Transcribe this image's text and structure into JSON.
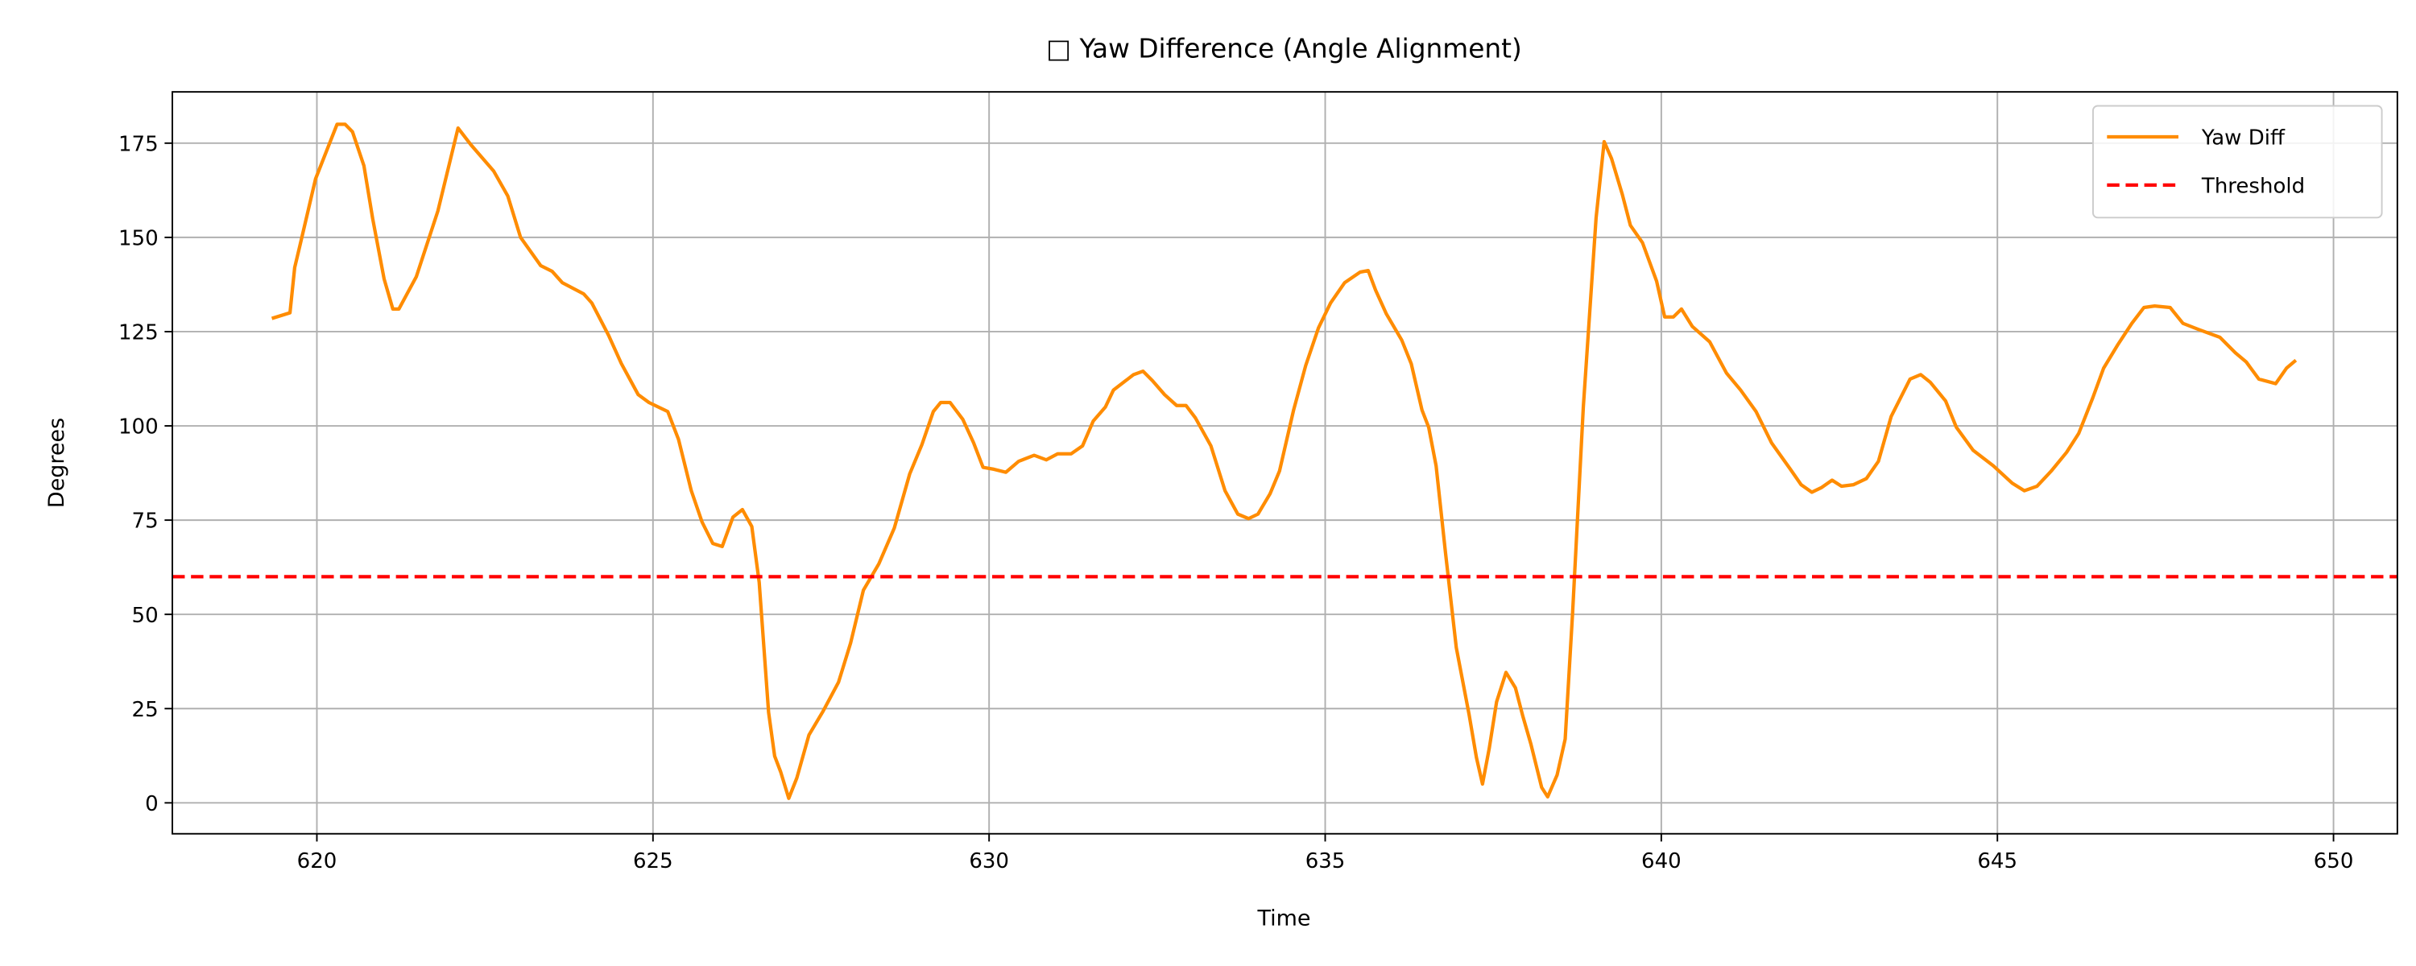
{
  "chart_data": {
    "type": "line",
    "title": "□ Yaw Difference (Angle Alignment)",
    "xlabel": "Time",
    "ylabel": "Degrees",
    "x": [
      619.33,
      619.6,
      619.67,
      619.75,
      619.98,
      620.3,
      620.42,
      620.53,
      620.7,
      620.83,
      621.0,
      621.13,
      621.22,
      621.48,
      621.8,
      622.1,
      622.29,
      622.63,
      622.84,
      623.03,
      623.33,
      623.5,
      623.65,
      623.97,
      624.09,
      624.34,
      624.53,
      624.78,
      624.94,
      625.22,
      625.38,
      625.57,
      625.73,
      625.89,
      626.03,
      626.19,
      626.33,
      626.47,
      626.58,
      626.72,
      626.81,
      626.9,
      627.02,
      627.14,
      627.32,
      627.53,
      627.76,
      627.94,
      628.13,
      628.36,
      628.59,
      628.82,
      629.0,
      629.17,
      629.28,
      629.42,
      629.61,
      629.77,
      629.91,
      630.07,
      630.25,
      630.44,
      630.67,
      630.85,
      631.02,
      631.22,
      631.39,
      631.55,
      631.73,
      631.85,
      632.15,
      632.29,
      632.43,
      632.61,
      632.79,
      632.93,
      633.07,
      633.3,
      633.51,
      633.7,
      633.86,
      634.0,
      634.18,
      634.32,
      634.53,
      634.71,
      634.9,
      635.08,
      635.29,
      635.52,
      635.64,
      635.75,
      635.91,
      636.14,
      636.28,
      636.44,
      636.54,
      636.65,
      636.79,
      636.95,
      637.14,
      637.25,
      637.34,
      637.44,
      637.55,
      637.69,
      637.83,
      637.94,
      638.06,
      638.22,
      638.31,
      638.45,
      638.57,
      638.68,
      638.84,
      639.03,
      639.15,
      639.26,
      639.42,
      639.54,
      639.72,
      639.93,
      640.05,
      640.18,
      640.3,
      640.46,
      640.72,
      640.97,
      641.18,
      641.41,
      641.64,
      641.92,
      642.08,
      642.24,
      642.38,
      642.54,
      642.68,
      642.86,
      643.05,
      643.23,
      643.42,
      643.7,
      643.86,
      644.0,
      644.23,
      644.39,
      644.64,
      644.94,
      645.22,
      645.4,
      645.59,
      645.8,
      646.03,
      646.21,
      646.42,
      646.58,
      646.79,
      647.0,
      647.18,
      647.34,
      647.57,
      647.76,
      647.99,
      648.31,
      648.54,
      648.7,
      648.89,
      649.14,
      649.3,
      649.44
    ],
    "series": [
      {
        "name": "Yaw Diff",
        "color": "#ff8c00",
        "values": [
          128.5,
          130,
          142,
          148,
          165.5,
          180,
          180,
          178,
          169,
          155,
          139,
          131,
          131,
          139.6,
          157,
          179,
          174.6,
          167.6,
          161,
          150,
          142.5,
          141,
          138,
          135,
          132.6,
          124,
          116.5,
          108.3,
          106.2,
          103.8,
          96.4,
          82.8,
          74.5,
          68.8,
          68,
          75.8,
          77.8,
          73.3,
          58.5,
          24,
          12.4,
          8.2,
          1.2,
          6.6,
          18,
          24.3,
          32,
          42.4,
          56.4,
          63.4,
          72.9,
          87.3,
          95,
          103.8,
          106.2,
          106.2,
          101.7,
          95.5,
          89,
          88.5,
          87.7,
          90.6,
          92.2,
          91,
          92.6,
          92.6,
          94.7,
          101.3,
          105,
          109.5,
          113.6,
          114.5,
          112,
          108.3,
          105.4,
          105.4,
          102.1,
          94.7,
          82.8,
          76.6,
          75.4,
          76.6,
          82,
          88,
          104.2,
          116,
          126,
          132.6,
          138,
          140.8,
          141.2,
          136,
          129.7,
          122.7,
          116.5,
          104.2,
          99.6,
          89.4,
          66.3,
          41.2,
          23.5,
          12,
          5,
          14.4,
          26.8,
          34.6,
          30.5,
          23,
          15.6,
          4.1,
          1.6,
          7.4,
          16.9,
          50.2,
          105,
          155.2,
          175.4,
          170.9,
          161.4,
          153.2,
          148.6,
          138.4,
          128.9,
          128.9,
          131,
          126.4,
          122.3,
          114,
          109.5,
          103.8,
          95.5,
          88.5,
          84.4,
          82.4,
          83.6,
          85.6,
          84,
          84.4,
          86,
          90.6,
          102.5,
          112.4,
          113.6,
          111.6,
          106.6,
          99.6,
          93.5,
          89.4,
          84.8,
          82.8,
          84,
          88,
          93,
          98,
          107.5,
          115.3,
          121.5,
          127.2,
          131.4,
          131.8,
          131.4,
          127.2,
          125.6,
          123.5,
          119.4,
          117,
          112.4,
          111.2,
          115.3,
          117.4
        ]
      }
    ],
    "hlines": [
      {
        "name": "Threshold",
        "value": 60,
        "color": "#ff0000",
        "dashed": true
      }
    ],
    "xlim": [
      617.85,
      650.95
    ],
    "ylim": [
      -8.2,
      188.6
    ],
    "xticks": [
      620,
      625,
      630,
      635,
      640,
      645,
      650
    ],
    "yticks": [
      0,
      25,
      50,
      75,
      100,
      125,
      150,
      175
    ],
    "grid": true,
    "legend": "upper right"
  }
}
